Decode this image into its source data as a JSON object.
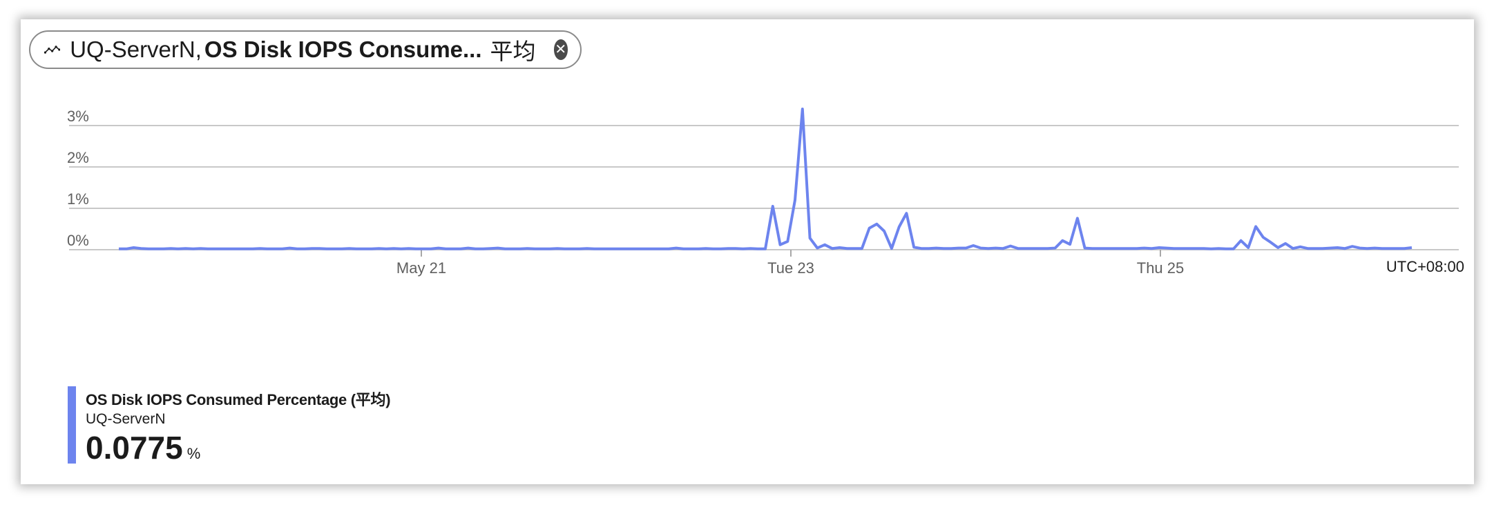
{
  "pill": {
    "resource": "UQ-ServerN,",
    "metric": "OS Disk IOPS Consume...",
    "aggregation": "平均",
    "icon": "line-chart-icon",
    "close_icon": "close-circle-icon"
  },
  "legend": {
    "metric": "OS Disk IOPS Consumed Percentage (平均)",
    "resource": "UQ-ServerN",
    "value": "0.0775",
    "unit": "%",
    "color": "#6d84ee"
  },
  "chart_data": {
    "type": "line",
    "x_tick_labels": [
      "May 21",
      "Tue 23",
      "Thu 25"
    ],
    "timezone_label": "UTC+08:00",
    "y_tick_labels": [
      "0%",
      "1%",
      "2%",
      "3%"
    ],
    "y_ticks": [
      0,
      1,
      2,
      3
    ],
    "ylim": [
      0,
      3.4
    ],
    "grid": true,
    "series": [
      {
        "name": "OS Disk IOPS Consumed Percentage (平均)",
        "color": "#6d84ee",
        "values": [
          0.02,
          0.02,
          0.05,
          0.03,
          0.02,
          0.02,
          0.02,
          0.03,
          0.02,
          0.03,
          0.02,
          0.03,
          0.02,
          0.02,
          0.02,
          0.02,
          0.02,
          0.02,
          0.02,
          0.03,
          0.02,
          0.02,
          0.02,
          0.04,
          0.02,
          0.02,
          0.03,
          0.03,
          0.02,
          0.02,
          0.02,
          0.03,
          0.02,
          0.02,
          0.02,
          0.03,
          0.02,
          0.03,
          0.02,
          0.03,
          0.02,
          0.02,
          0.02,
          0.04,
          0.02,
          0.02,
          0.02,
          0.04,
          0.02,
          0.02,
          0.03,
          0.04,
          0.02,
          0.02,
          0.02,
          0.03,
          0.02,
          0.02,
          0.02,
          0.03,
          0.02,
          0.02,
          0.02,
          0.03,
          0.02,
          0.02,
          0.02,
          0.02,
          0.02,
          0.02,
          0.02,
          0.02,
          0.02,
          0.02,
          0.02,
          0.04,
          0.02,
          0.02,
          0.02,
          0.03,
          0.02,
          0.02,
          0.03,
          0.03,
          0.02,
          0.03,
          0.02,
          0.02,
          1.05,
          0.12,
          0.2,
          1.2,
          3.4,
          0.28,
          0.04,
          0.12,
          0.03,
          0.05,
          0.03,
          0.03,
          0.03,
          0.52,
          0.62,
          0.45,
          0.03,
          0.55,
          0.88,
          0.06,
          0.03,
          0.03,
          0.04,
          0.03,
          0.03,
          0.04,
          0.04,
          0.1,
          0.04,
          0.03,
          0.04,
          0.03,
          0.09,
          0.03,
          0.03,
          0.03,
          0.03,
          0.03,
          0.04,
          0.22,
          0.13,
          0.76,
          0.04,
          0.03,
          0.03,
          0.03,
          0.03,
          0.03,
          0.03,
          0.03,
          0.04,
          0.03,
          0.05,
          0.04,
          0.03,
          0.03,
          0.03,
          0.03,
          0.03,
          0.02,
          0.03,
          0.02,
          0.02,
          0.22,
          0.05,
          0.56,
          0.3,
          0.18,
          0.05,
          0.15,
          0.03,
          0.07,
          0.03,
          0.03,
          0.03,
          0.04,
          0.05,
          0.03,
          0.08,
          0.04,
          0.03,
          0.04,
          0.03,
          0.03,
          0.03,
          0.03,
          0.05
        ]
      }
    ]
  }
}
